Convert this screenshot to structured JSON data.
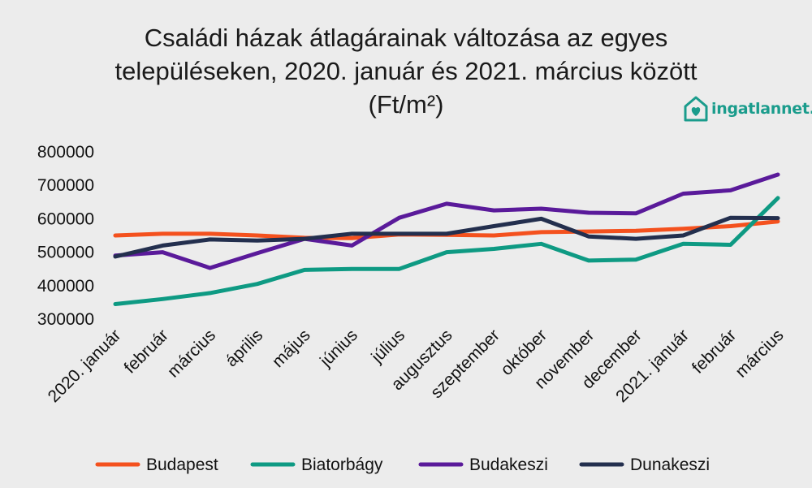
{
  "title_lines": [
    "Családi házak átlagárainak változása az egyes",
    "településeken,  2020. január és 2021. március között",
    "(Ft/m²)"
  ],
  "logo": {
    "text": "ingatlannet.hu",
    "icon": "house-heart-icon",
    "color": "#1a9c8c"
  },
  "chart_data": {
    "type": "line",
    "title": "Családi házak átlagárainak változása az egyes településeken, 2020. január és 2021. március között (Ft/m²)",
    "xlabel": "",
    "ylabel": "",
    "ylim": [
      300000,
      800000
    ],
    "yticks": [
      "800000",
      "700000",
      "600000",
      "500000",
      "400000",
      "300000"
    ],
    "ytick_values": [
      800000,
      700000,
      600000,
      500000,
      400000,
      300000
    ],
    "grid": false,
    "legend_position": "bottom",
    "categories": [
      "2020. január",
      "február",
      "március",
      "április",
      "május",
      "június",
      "július",
      "augusztus",
      "szeptember",
      "október",
      "november",
      "december",
      "2021. január",
      "február",
      "március"
    ],
    "series": [
      {
        "name": "Budapest",
        "color": "#f4511e",
        "values": [
          550000,
          555000,
          555000,
          550000,
          543000,
          542000,
          553000,
          552000,
          550000,
          560000,
          562000,
          564000,
          570000,
          578000,
          592000
        ]
      },
      {
        "name": "Biatorbágy",
        "color": "#0e9a83",
        "values": [
          345000,
          360000,
          378000,
          405000,
          447000,
          450000,
          450000,
          500000,
          510000,
          525000,
          475000,
          478000,
          525000,
          522000,
          662000
        ]
      },
      {
        "name": "Budakeszi",
        "color": "#5a1a9a",
        "values": [
          490000,
          500000,
          453000,
          497000,
          540000,
          520000,
          603000,
          645000,
          625000,
          630000,
          618000,
          616000,
          675000,
          685000,
          732000
        ]
      },
      {
        "name": "Dunakeszi",
        "color": "#232f4e",
        "values": [
          487000,
          520000,
          538000,
          535000,
          540000,
          555000,
          555000,
          555000,
          578000,
          600000,
          547000,
          540000,
          550000,
          603000,
          602000
        ]
      }
    ]
  }
}
